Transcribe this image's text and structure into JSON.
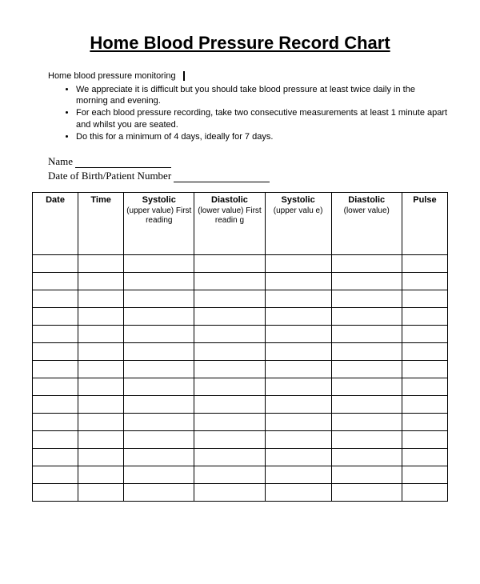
{
  "title": "Home Blood Pressure Record Chart",
  "intro": "Home blood pressure monitoring",
  "bullets": [
    "We appreciate it is difficult but you should take blood pressure at least twice daily in the morning and evening.",
    "For each blood pressure recording, take two consecutive measurements  at least 1 minute apart and whilst you are seated.",
    "Do this for a minimum of 4 days, ideally for 7 days."
  ],
  "fields": {
    "name_label": "Name",
    "dob_label": "Date of Birth/Patient Number"
  },
  "table": {
    "columns": [
      {
        "header": "Date",
        "sub": "",
        "class": "col-date"
      },
      {
        "header": "Time",
        "sub": "",
        "class": "col-time"
      },
      {
        "header": "Systolic",
        "sub": "(upper value) First reading",
        "class": "col-sys1"
      },
      {
        "header": "Diastolic",
        "sub": "(lower value) First readin g",
        "class": "col-dia1"
      },
      {
        "header": "Systolic",
        "sub": "(upper valu e)",
        "class": "col-sys2"
      },
      {
        "header": "Diastolic",
        "sub": "(lower value)",
        "class": "col-dia2"
      },
      {
        "header": "Pulse",
        "sub": "",
        "class": "col-pulse"
      }
    ],
    "row_count": 14,
    "border_color": "#000000",
    "background_color": "#ffffff"
  }
}
